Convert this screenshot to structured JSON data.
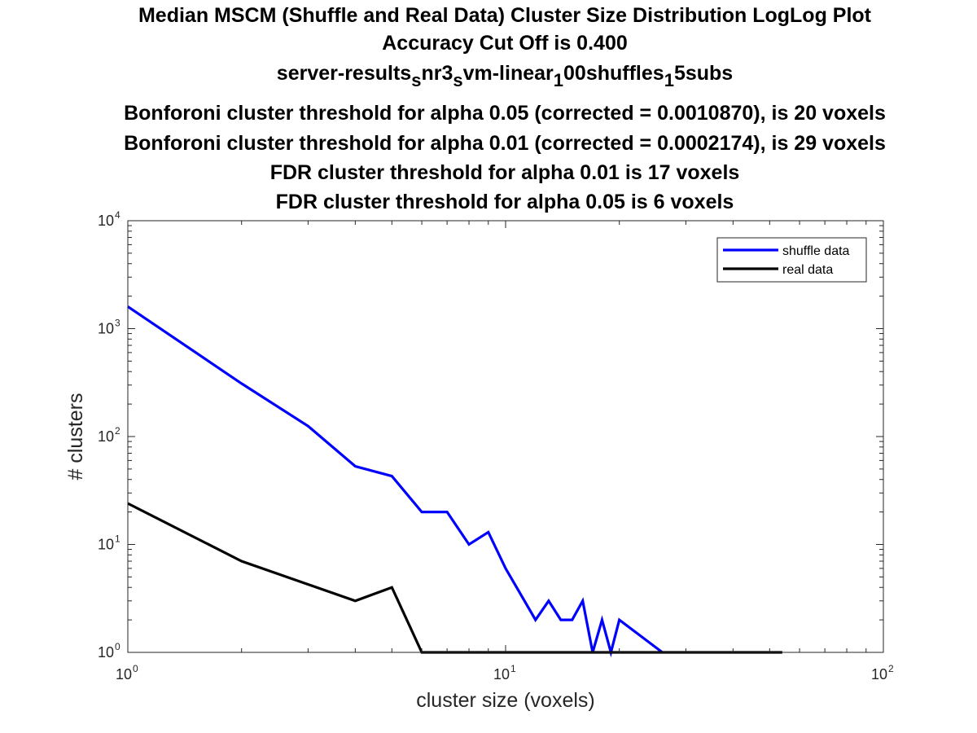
{
  "chart_data": {
    "type": "line",
    "title": {
      "lines": [
        {
          "text": "Median MSCM (Shuffle and Real Data) Cluster Size Distribution LogLog Plot"
        },
        {
          "text": "Accuracy Cut Off is 0.400"
        },
        {
          "segments": [
            {
              "text": "server-results",
              "sub": false
            },
            {
              "text": "s",
              "sub": true
            },
            {
              "text": "nr3",
              "sub": false
            },
            {
              "text": "s",
              "sub": true
            },
            {
              "text": "vm-linear",
              "sub": false
            },
            {
              "text": "1",
              "sub": true
            },
            {
              "text": "00shuffles",
              "sub": false
            },
            {
              "text": "1",
              "sub": true
            },
            {
              "text": "5subs",
              "sub": false
            }
          ]
        },
        {
          "text": "Bonforoni cluster threshold for alpha 0.05 (corrected = 0.0010870), is 20 voxels"
        },
        {
          "text": "Bonforoni cluster threshold for alpha 0.01 (corrected = 0.0002174), is 29 voxels"
        },
        {
          "text": "FDR cluster threshold for alpha 0.01 is 17 voxels"
        },
        {
          "text": "FDR cluster threshold for alpha 0.05 is 6 voxels"
        }
      ]
    },
    "xlabel": "cluster size (voxels)",
    "ylabel": "# clusters",
    "xscale": "log",
    "yscale": "log",
    "xlim": [
      1,
      100
    ],
    "ylim": [
      1,
      10000
    ],
    "x_ticks": [
      {
        "value": 1,
        "base": "10",
        "exp": "0"
      },
      {
        "value": 10,
        "base": "10",
        "exp": "1"
      },
      {
        "value": 100,
        "base": "10",
        "exp": "2"
      }
    ],
    "y_ticks": [
      {
        "value": 1,
        "base": "10",
        "exp": "0"
      },
      {
        "value": 10,
        "base": "10",
        "exp": "1"
      },
      {
        "value": 100,
        "base": "10",
        "exp": "2"
      },
      {
        "value": 1000,
        "base": "10",
        "exp": "3"
      },
      {
        "value": 10000,
        "base": "10",
        "exp": "4"
      }
    ],
    "grid": false,
    "legend": {
      "position": "top-right"
    },
    "series": [
      {
        "name": "shuffle data",
        "color": "#0000ff",
        "x": [
          1,
          2,
          3,
          4,
          5,
          6,
          7,
          8,
          9,
          10,
          12,
          13,
          14,
          15,
          16,
          17,
          18,
          19,
          20,
          26
        ],
        "y": [
          1600,
          310,
          125,
          53,
          43,
          20,
          20,
          10,
          13,
          6,
          2,
          3,
          2,
          2,
          3,
          1,
          2,
          1,
          2,
          1
        ]
      },
      {
        "name": "real data",
        "color": "#000000",
        "x": [
          1,
          2,
          4,
          5,
          6,
          54
        ],
        "y": [
          24,
          7,
          3,
          4,
          1,
          1
        ]
      }
    ]
  }
}
